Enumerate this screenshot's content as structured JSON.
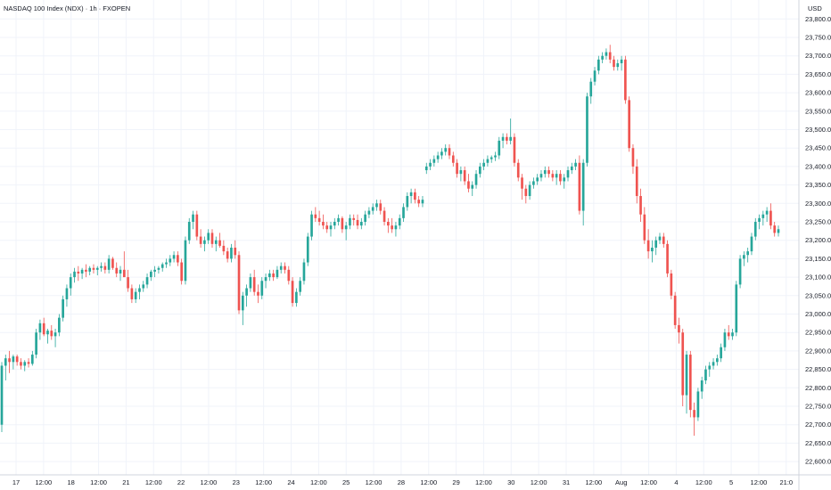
{
  "chart_data": {
    "type": "candlestick",
    "title": "NASDAQ 100 Index (NDX) · 1h · FXOPEN",
    "currency": "USD",
    "colors": {
      "up": "#26a69a",
      "down": "#ef5350",
      "grid": "#f0f3fa",
      "text": "#131722"
    },
    "grid": true,
    "ylim": [
      22575,
      23830
    ],
    "y_ticks": [
      {
        "value": 23800,
        "label": "23,800.0"
      },
      {
        "value": 23750,
        "label": "23,750.0"
      },
      {
        "value": 23700,
        "label": "23,700.0"
      },
      {
        "value": 23650,
        "label": "23,650.0"
      },
      {
        "value": 23600,
        "label": "23,600.0"
      },
      {
        "value": 23550,
        "label": "23,550.0"
      },
      {
        "value": 23500,
        "label": "23,500.0"
      },
      {
        "value": 23450,
        "label": "23,450.0"
      },
      {
        "value": 23400,
        "label": "23,400.0"
      },
      {
        "value": 23350,
        "label": "23,350.0"
      },
      {
        "value": 23300,
        "label": "23,300.0"
      },
      {
        "value": 23250,
        "label": "23,250.0"
      },
      {
        "value": 23200,
        "label": "23,200.0"
      },
      {
        "value": 23150,
        "label": "23,150.0"
      },
      {
        "value": 23100,
        "label": "23,100.0"
      },
      {
        "value": 23050,
        "label": "23,050.0"
      },
      {
        "value": 23000,
        "label": "23,000.0"
      },
      {
        "value": 22950,
        "label": "22,950.0"
      },
      {
        "value": 22900,
        "label": "22,900.0"
      },
      {
        "value": 22850,
        "label": "22,850.0"
      },
      {
        "value": 22800,
        "label": "22,800.0"
      },
      {
        "value": 22750,
        "label": "22,750.0"
      },
      {
        "value": 22700,
        "label": "22,700.0"
      },
      {
        "value": 22650,
        "label": "22,650.0"
      },
      {
        "value": 22600,
        "label": "22,600.0"
      }
    ],
    "x_ticks": [
      "17",
      "12:00",
      "18",
      "12:00",
      "21",
      "12:00",
      "22",
      "12:00",
      "23",
      "12:00",
      "24",
      "12:00",
      "25",
      "12:00",
      "28",
      "12:00",
      "29",
      "12:00",
      "30",
      "12:00",
      "31",
      "12:00",
      "Aug",
      "12:00",
      "4",
      "12:00",
      "5",
      "12:00",
      "21:0"
    ],
    "candles": [
      [
        22700,
        22870,
        22680,
        22860
      ],
      [
        22860,
        22890,
        22820,
        22880
      ],
      [
        22880,
        22900,
        22840,
        22870
      ],
      [
        22870,
        22890,
        22850,
        22885
      ],
      [
        22885,
        22890,
        22860,
        22870
      ],
      [
        22870,
        22880,
        22850,
        22860
      ],
      [
        22860,
        22875,
        22845,
        22870
      ],
      [
        22870,
        22880,
        22855,
        22865
      ],
      [
        22865,
        22900,
        22860,
        22890
      ],
      [
        22890,
        22960,
        22880,
        22950
      ],
      [
        22950,
        22985,
        22930,
        22975
      ],
      [
        22975,
        22990,
        22940,
        22945
      ],
      [
        22945,
        22960,
        22920,
        22955
      ],
      [
        22955,
        22970,
        22930,
        22940
      ],
      [
        22940,
        22960,
        22910,
        22950
      ],
      [
        22950,
        23000,
        22940,
        22990
      ],
      [
        22990,
        23050,
        22980,
        23040
      ],
      [
        23040,
        23080,
        23020,
        23070
      ],
      [
        23070,
        23110,
        23050,
        23100
      ],
      [
        23100,
        23125,
        23085,
        23115
      ],
      [
        23115,
        23130,
        23090,
        23110
      ],
      [
        23110,
        23125,
        23095,
        23120
      ],
      [
        23120,
        23135,
        23100,
        23115
      ],
      [
        23115,
        23130,
        23105,
        23125
      ],
      [
        23125,
        23135,
        23110,
        23120
      ],
      [
        23120,
        23130,
        23105,
        23125
      ],
      [
        23125,
        23140,
        23115,
        23130
      ],
      [
        23130,
        23140,
        23110,
        23120
      ],
      [
        23120,
        23160,
        23110,
        23150
      ],
      [
        23150,
        23155,
        23120,
        23125
      ],
      [
        23125,
        23140,
        23100,
        23110
      ],
      [
        23110,
        23130,
        23090,
        23120
      ],
      [
        23120,
        23170,
        23110,
        23100
      ],
      [
        23100,
        23120,
        23060,
        23070
      ],
      [
        23070,
        23080,
        23030,
        23040
      ],
      [
        23040,
        23070,
        23030,
        23060
      ],
      [
        23060,
        23080,
        23040,
        23070
      ],
      [
        23070,
        23090,
        23060,
        23080
      ],
      [
        23080,
        23110,
        23070,
        23100
      ],
      [
        23100,
        23120,
        23090,
        23115
      ],
      [
        23115,
        23130,
        23100,
        23120
      ],
      [
        23120,
        23130,
        23110,
        23125
      ],
      [
        23125,
        23140,
        23115,
        23135
      ],
      [
        23135,
        23150,
        23125,
        23140
      ],
      [
        23140,
        23160,
        23130,
        23150
      ],
      [
        23150,
        23170,
        23140,
        23160
      ],
      [
        23160,
        23170,
        23130,
        23140
      ],
      [
        23140,
        23150,
        23080,
        23090
      ],
      [
        23090,
        23210,
        23080,
        23200
      ],
      [
        23200,
        23260,
        23190,
        23250
      ],
      [
        23250,
        23280,
        23230,
        23270
      ],
      [
        23270,
        23280,
        23200,
        23210
      ],
      [
        23210,
        23230,
        23180,
        23190
      ],
      [
        23190,
        23210,
        23170,
        23200
      ],
      [
        23200,
        23230,
        23190,
        23220
      ],
      [
        23220,
        23230,
        23180,
        23190
      ],
      [
        23190,
        23210,
        23170,
        23200
      ],
      [
        23200,
        23220,
        23180,
        23185
      ],
      [
        23185,
        23200,
        23160,
        23170
      ],
      [
        23170,
        23180,
        23140,
        23150
      ],
      [
        23150,
        23190,
        23140,
        23180
      ],
      [
        23180,
        23200,
        23150,
        23160
      ],
      [
        23160,
        23170,
        23000,
        23010
      ],
      [
        23010,
        23060,
        22970,
        23050
      ],
      [
        23050,
        23080,
        23020,
        23070
      ],
      [
        23070,
        23110,
        23060,
        23100
      ],
      [
        23100,
        23120,
        23050,
        23060
      ],
      [
        23060,
        23080,
        23030,
        23050
      ],
      [
        23050,
        23100,
        23040,
        23090
      ],
      [
        23090,
        23110,
        23070,
        23100
      ],
      [
        23100,
        23120,
        23090,
        23110
      ],
      [
        23110,
        23120,
        23090,
        23100
      ],
      [
        23100,
        23130,
        23095,
        23120
      ],
      [
        23120,
        23140,
        23110,
        23130
      ],
      [
        23130,
        23140,
        23110,
        23120
      ],
      [
        23120,
        23130,
        23080,
        23090
      ],
      [
        23090,
        23100,
        23020,
        23030
      ],
      [
        23030,
        23070,
        23020,
        23060
      ],
      [
        23060,
        23100,
        23050,
        23090
      ],
      [
        23090,
        23150,
        23080,
        23140
      ],
      [
        23140,
        23220,
        23130,
        23210
      ],
      [
        23210,
        23280,
        23200,
        23270
      ],
      [
        23270,
        23290,
        23250,
        23260
      ],
      [
        23260,
        23280,
        23240,
        23250
      ],
      [
        23250,
        23270,
        23230,
        23240
      ],
      [
        23240,
        23250,
        23220,
        23230
      ],
      [
        23230,
        23250,
        23210,
        23240
      ],
      [
        23240,
        23260,
        23230,
        23250
      ],
      [
        23250,
        23270,
        23240,
        23260
      ],
      [
        23260,
        23265,
        23220,
        23230
      ],
      [
        23230,
        23250,
        23200,
        23240
      ],
      [
        23240,
        23270,
        23230,
        23260
      ],
      [
        23260,
        23270,
        23240,
        23255
      ],
      [
        23255,
        23270,
        23230,
        23240
      ],
      [
        23240,
        23260,
        23230,
        23250
      ],
      [
        23250,
        23280,
        23240,
        23270
      ],
      [
        23270,
        23290,
        23260,
        23280
      ],
      [
        23280,
        23300,
        23270,
        23290
      ],
      [
        23290,
        23310,
        23280,
        23300
      ],
      [
        23300,
        23310,
        23270,
        23280
      ],
      [
        23280,
        23290,
        23240,
        23250
      ],
      [
        23250,
        23260,
        23220,
        23240
      ],
      [
        23240,
        23260,
        23220,
        23230
      ],
      [
        23230,
        23250,
        23210,
        23240
      ],
      [
        23240,
        23270,
        23230,
        23260
      ],
      [
        23260,
        23300,
        23250,
        23290
      ],
      [
        23290,
        23330,
        23280,
        23320
      ],
      [
        23320,
        23340,
        23300,
        23330
      ],
      [
        23330,
        23340,
        23300,
        23310
      ],
      [
        23310,
        23320,
        23290,
        23300
      ],
      [
        23300,
        23320,
        23290,
        23310
      ],
      [
        23390,
        23410,
        23380,
        23400
      ],
      [
        23400,
        23420,
        23390,
        23410
      ],
      [
        23410,
        23430,
        23400,
        23420
      ],
      [
        23420,
        23440,
        23410,
        23430
      ],
      [
        23430,
        23450,
        23420,
        23440
      ],
      [
        23440,
        23460,
        23430,
        23450
      ],
      [
        23450,
        23460,
        23420,
        23430
      ],
      [
        23430,
        23440,
        23400,
        23410
      ],
      [
        23410,
        23420,
        23370,
        23380
      ],
      [
        23380,
        23400,
        23360,
        23390
      ],
      [
        23390,
        23400,
        23350,
        23360
      ],
      [
        23360,
        23380,
        23330,
        23340
      ],
      [
        23340,
        23360,
        23320,
        23350
      ],
      [
        23350,
        23390,
        23340,
        23380
      ],
      [
        23380,
        23410,
        23370,
        23400
      ],
      [
        23400,
        23420,
        23390,
        23410
      ],
      [
        23410,
        23430,
        23400,
        23420
      ],
      [
        23420,
        23430,
        23410,
        23425
      ],
      [
        23425,
        23440,
        23415,
        23430
      ],
      [
        23430,
        23480,
        23420,
        23470
      ],
      [
        23470,
        23490,
        23450,
        23480
      ],
      [
        23480,
        23490,
        23460,
        23470
      ],
      [
        23470,
        23530,
        23460,
        23480
      ],
      [
        23480,
        23490,
        23400,
        23410
      ],
      [
        23410,
        23420,
        23360,
        23370
      ],
      [
        23370,
        23380,
        23310,
        23340
      ],
      [
        23340,
        23350,
        23300,
        23320
      ],
      [
        23320,
        23360,
        23310,
        23350
      ],
      [
        23350,
        23370,
        23340,
        23360
      ],
      [
        23360,
        23380,
        23350,
        23370
      ],
      [
        23370,
        23390,
        23360,
        23380
      ],
      [
        23380,
        23400,
        23370,
        23390
      ],
      [
        23390,
        23400,
        23370,
        23380
      ],
      [
        23380,
        23390,
        23360,
        23370
      ],
      [
        23370,
        23390,
        23350,
        23380
      ],
      [
        23380,
        23390,
        23350,
        23360
      ],
      [
        23360,
        23380,
        23340,
        23370
      ],
      [
        23370,
        23400,
        23360,
        23390
      ],
      [
        23390,
        23410,
        23380,
        23400
      ],
      [
        23400,
        23420,
        23390,
        23410
      ],
      [
        23410,
        23430,
        23270,
        23280
      ],
      [
        23280,
        23420,
        23240,
        23410
      ],
      [
        23410,
        23600,
        23400,
        23590
      ],
      [
        23590,
        23640,
        23570,
        23630
      ],
      [
        23630,
        23670,
        23620,
        23660
      ],
      [
        23660,
        23700,
        23650,
        23690
      ],
      [
        23690,
        23710,
        23680,
        23700
      ],
      [
        23700,
        23720,
        23690,
        23710
      ],
      [
        23710,
        23730,
        23680,
        23690
      ],
      [
        23690,
        23700,
        23660,
        23670
      ],
      [
        23670,
        23690,
        23660,
        23680
      ],
      [
        23680,
        23700,
        23660,
        23690
      ],
      [
        23690,
        23700,
        23570,
        23580
      ],
      [
        23580,
        23590,
        23440,
        23450
      ],
      [
        23450,
        23460,
        23380,
        23400
      ],
      [
        23400,
        23420,
        23300,
        23320
      ],
      [
        23320,
        23340,
        23250,
        23270
      ],
      [
        23270,
        23290,
        23190,
        23200
      ],
      [
        23200,
        23230,
        23150,
        23170
      ],
      [
        23170,
        23200,
        23140,
        23180
      ],
      [
        23180,
        23210,
        23160,
        23200
      ],
      [
        23200,
        23220,
        23190,
        23210
      ],
      [
        23210,
        23220,
        23180,
        23190
      ],
      [
        23190,
        23200,
        23100,
        23110
      ],
      [
        23110,
        23120,
        23040,
        23050
      ],
      [
        23050,
        23060,
        22960,
        22970
      ],
      [
        22970,
        22990,
        22920,
        22950
      ],
      [
        22950,
        22960,
        22750,
        22780
      ],
      [
        22780,
        22900,
        22730,
        22890
      ],
      [
        22890,
        22900,
        22720,
        22740
      ],
      [
        22740,
        22760,
        22670,
        22720
      ],
      [
        22720,
        22800,
        22710,
        22790
      ],
      [
        22790,
        22830,
        22770,
        22820
      ],
      [
        22820,
        22860,
        22810,
        22850
      ],
      [
        22850,
        22870,
        22830,
        22860
      ],
      [
        22860,
        22880,
        22850,
        22870
      ],
      [
        22870,
        22890,
        22860,
        22880
      ],
      [
        22880,
        22920,
        22870,
        22910
      ],
      [
        22910,
        22960,
        22900,
        22950
      ],
      [
        22950,
        22970,
        22930,
        22940
      ],
      [
        22940,
        22960,
        22930,
        22950
      ],
      [
        22950,
        23090,
        22940,
        23080
      ],
      [
        23080,
        23160,
        23070,
        23150
      ],
      [
        23150,
        23170,
        23130,
        23160
      ],
      [
        23160,
        23180,
        23140,
        23170
      ],
      [
        23170,
        23220,
        23160,
        23210
      ],
      [
        23210,
        23260,
        23200,
        23250
      ],
      [
        23250,
        23270,
        23230,
        23260
      ],
      [
        23260,
        23280,
        23240,
        23270
      ],
      [
        23270,
        23290,
        23250,
        23280
      ],
      [
        23280,
        23300,
        23230,
        23240
      ],
      [
        23240,
        23250,
        23210,
        23220
      ],
      [
        23220,
        23240,
        23210,
        23230
      ]
    ]
  }
}
